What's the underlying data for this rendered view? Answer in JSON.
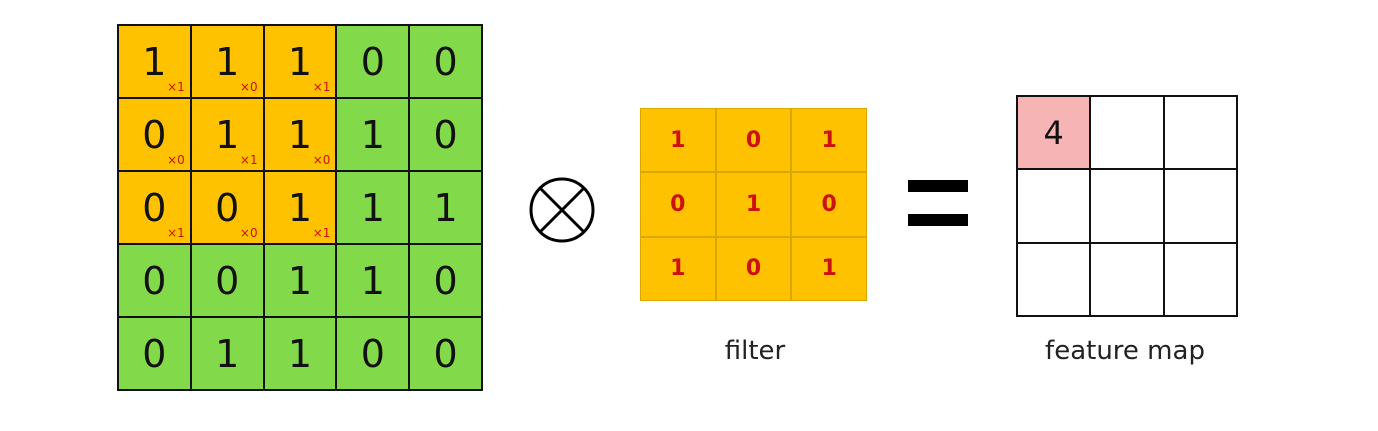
{
  "input": {
    "rows": [
      [
        {
          "v": "1",
          "w": "×1",
          "hl": true
        },
        {
          "v": "1",
          "w": "×0",
          "hl": true
        },
        {
          "v": "1",
          "w": "×1",
          "hl": true
        },
        {
          "v": "0",
          "w": "",
          "hl": false
        },
        {
          "v": "0",
          "w": "",
          "hl": false
        }
      ],
      [
        {
          "v": "0",
          "w": "×0",
          "hl": true
        },
        {
          "v": "1",
          "w": "×1",
          "hl": true
        },
        {
          "v": "1",
          "w": "×0",
          "hl": true
        },
        {
          "v": "1",
          "w": "",
          "hl": false
        },
        {
          "v": "0",
          "w": "",
          "hl": false
        }
      ],
      [
        {
          "v": "0",
          "w": "×1",
          "hl": true
        },
        {
          "v": "0",
          "w": "×0",
          "hl": true
        },
        {
          "v": "1",
          "w": "×1",
          "hl": true
        },
        {
          "v": "1",
          "w": "",
          "hl": false
        },
        {
          "v": "1",
          "w": "",
          "hl": false
        }
      ],
      [
        {
          "v": "0",
          "w": "",
          "hl": false
        },
        {
          "v": "0",
          "w": "",
          "hl": false
        },
        {
          "v": "1",
          "w": "",
          "hl": false
        },
        {
          "v": "1",
          "w": "",
          "hl": false
        },
        {
          "v": "0",
          "w": "",
          "hl": false
        }
      ],
      [
        {
          "v": "0",
          "w": "",
          "hl": false
        },
        {
          "v": "1",
          "w": "",
          "hl": false
        },
        {
          "v": "1",
          "w": "",
          "hl": false
        },
        {
          "v": "0",
          "w": "",
          "hl": false
        },
        {
          "v": "0",
          "w": "",
          "hl": false
        }
      ]
    ]
  },
  "filter": {
    "label": "filter",
    "rows": [
      [
        "1",
        "0",
        "1"
      ],
      [
        "0",
        "1",
        "0"
      ],
      [
        "1",
        "0",
        "1"
      ]
    ]
  },
  "feature_map": {
    "label": "feature map",
    "rows": [
      [
        "4",
        "",
        ""
      ],
      [
        "",
        "",
        ""
      ],
      [
        "",
        "",
        ""
      ]
    ]
  },
  "colors": {
    "input_cell": "#82d94a",
    "highlight": "#ffc200",
    "weight_text": "#cc1111",
    "output_filled": "#f7b4b4"
  }
}
